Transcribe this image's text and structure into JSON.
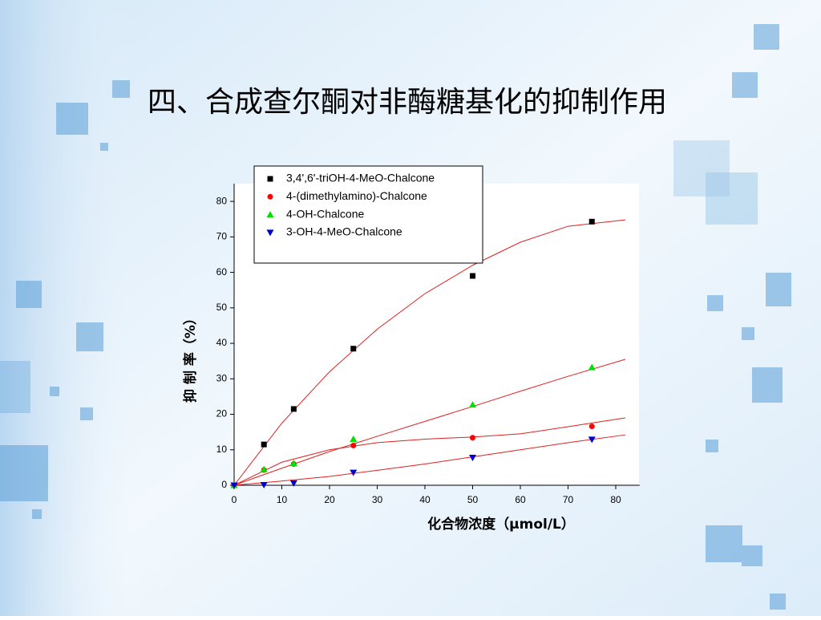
{
  "chart_data": {
    "type": "scatter",
    "title": "四、合成查尔酮对非酶糖基化的抑制作用",
    "x_label": "化合物浓度（μmol/L）",
    "y_label": "抑 制 率（%）",
    "x": [
      0,
      6.25,
      12.5,
      25,
      50,
      75
    ],
    "series": [
      {
        "name": "3,4',6'-triOH-4-MeO-Chalcone",
        "color": "#000000",
        "marker": "square",
        "values": [
          0,
          11.5,
          21.5,
          38.5,
          59,
          74.3
        ]
      },
      {
        "name": "4-(dimethylamino)-Chalcone",
        "color": "#ff0000",
        "marker": "circle",
        "values": [
          0,
          4.3,
          6,
          11.2,
          13.4,
          16.6
        ]
      },
      {
        "name": "4-OH-Chalcone",
        "color": "#00e000",
        "marker": "triangle-up",
        "values": [
          0,
          4.5,
          6.2,
          13,
          22.7,
          33.2
        ]
      },
      {
        "name": "3-OH-4-MeO-Chalcone",
        "color": "#0000cc",
        "marker": "triangle-down",
        "values": [
          0,
          0.1,
          0.6,
          3.6,
          7.8,
          12.9
        ]
      }
    ],
    "fit_curves": {
      "color": "#e02020",
      "x": [
        0,
        10,
        20,
        30,
        40,
        50,
        60,
        70,
        82
      ],
      "curves": [
        [
          0,
          17.5,
          32,
          44,
          54,
          62,
          68.5,
          73,
          74.8
        ],
        [
          0,
          6.5,
          10,
          12,
          13,
          13.6,
          14.5,
          16.5,
          19
        ],
        [
          0,
          4.8,
          9.5,
          13.8,
          18,
          22.2,
          26.5,
          30.7,
          35.5
        ],
        [
          0,
          1.2,
          2.5,
          4.2,
          6,
          8,
          10,
          12,
          14.2
        ]
      ]
    },
    "xlim": [
      0,
      85
    ],
    "ylim": [
      0,
      85
    ],
    "xticks": [
      0,
      10,
      20,
      30,
      40,
      50,
      60,
      70,
      80
    ],
    "yticks": [
      0,
      10,
      20,
      30,
      40,
      50,
      60,
      70,
      80
    ],
    "legend": "upper-left"
  }
}
